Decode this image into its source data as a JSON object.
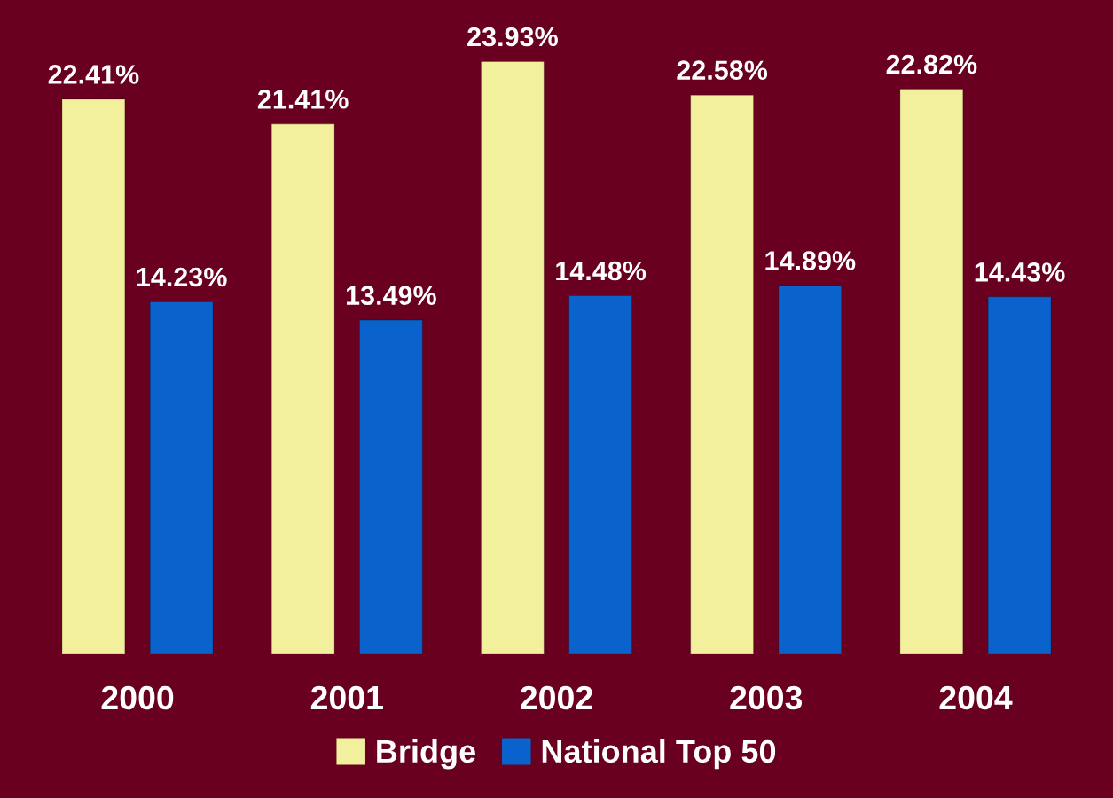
{
  "chart_data": {
    "type": "bar",
    "categories": [
      "2000",
      "2001",
      "2002",
      "2003",
      "2004"
    ],
    "series": [
      {
        "name": "Bridge",
        "color": "#f2f09c",
        "values": [
          22.41,
          21.41,
          23.93,
          22.58,
          22.82
        ],
        "value_labels": [
          "22.41%",
          "21.41%",
          "23.93%",
          "22.58%",
          "22.82%"
        ]
      },
      {
        "name": "National Top 50",
        "color": "#0a63cc",
        "values": [
          14.23,
          13.49,
          14.48,
          14.89,
          14.43
        ],
        "value_labels": [
          "14.23%",
          "13.49%",
          "14.48%",
          "14.89%",
          "14.43%"
        ]
      }
    ],
    "legend": "bottom",
    "grid": false
  }
}
